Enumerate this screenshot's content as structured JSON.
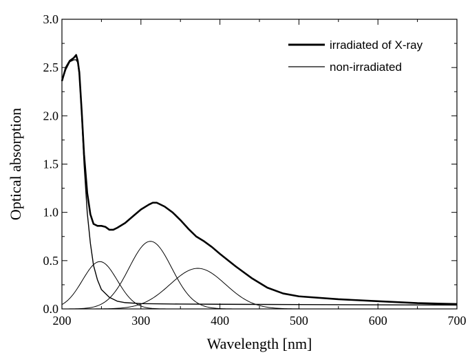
{
  "chart_data": {
    "type": "line",
    "xlabel": "Wavelength [nm]",
    "ylabel": "Optical absorption",
    "xlim": [
      200,
      700
    ],
    "ylim": [
      0.0,
      3.0
    ],
    "x_ticks": [
      "200",
      "300",
      "400",
      "500",
      "600",
      "700"
    ],
    "y_ticks": [
      "0.0",
      "0.5",
      "1.0",
      "1.5",
      "2.0",
      "2.5",
      "3.0"
    ],
    "grid": false,
    "legend_position": "top-right",
    "series": [
      {
        "name": "irradiated of X-ray",
        "style": "thick",
        "x": [
          200,
          205,
          210,
          215,
          218,
          220,
          222,
          225,
          228,
          232,
          236,
          240,
          245,
          250,
          255,
          260,
          265,
          270,
          280,
          290,
          300,
          310,
          315,
          320,
          330,
          340,
          350,
          360,
          370,
          380,
          390,
          400,
          420,
          440,
          460,
          480,
          500,
          550,
          600,
          650,
          700
        ],
        "y": [
          2.36,
          2.5,
          2.57,
          2.6,
          2.63,
          2.57,
          2.45,
          2.05,
          1.6,
          1.2,
          0.98,
          0.88,
          0.86,
          0.86,
          0.85,
          0.82,
          0.82,
          0.84,
          0.89,
          0.96,
          1.03,
          1.08,
          1.1,
          1.1,
          1.06,
          1.0,
          0.92,
          0.83,
          0.75,
          0.7,
          0.64,
          0.57,
          0.44,
          0.32,
          0.22,
          0.16,
          0.13,
          0.1,
          0.08,
          0.06,
          0.05
        ]
      },
      {
        "name": "non-irradiated",
        "style": "thin",
        "x": [
          200,
          205,
          210,
          215,
          218,
          220,
          222,
          225,
          228,
          232,
          236,
          240,
          245,
          250,
          260,
          270,
          280,
          300,
          350,
          400,
          500,
          600,
          700
        ],
        "y": [
          2.36,
          2.48,
          2.56,
          2.58,
          2.58,
          2.55,
          2.42,
          2.0,
          1.5,
          1.0,
          0.68,
          0.45,
          0.3,
          0.2,
          0.12,
          0.08,
          0.065,
          0.055,
          0.05,
          0.048,
          0.045,
          0.042,
          0.04
        ]
      },
      {
        "name": "",
        "style": "component",
        "center": 248,
        "sigma": 22,
        "amplitude": 0.49
      },
      {
        "name": "",
        "style": "component",
        "center": 312,
        "sigma": 27,
        "amplitude": 0.7
      },
      {
        "name": "",
        "style": "component",
        "center": 372,
        "sigma": 35,
        "amplitude": 0.42
      }
    ]
  }
}
